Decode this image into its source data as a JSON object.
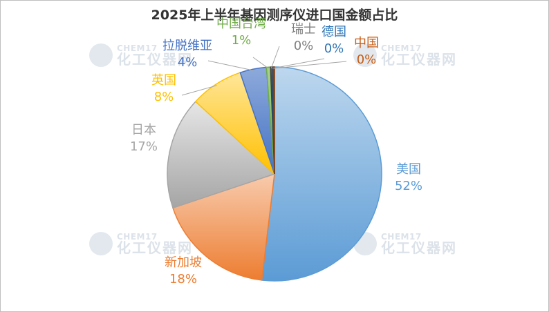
{
  "watermark": {
    "brand": "CHEM17",
    "name": "化工仪器网"
  },
  "chart_data": {
    "type": "pie",
    "title": "2025年上半年基因测序仪进口国金额占比",
    "slices": [
      {
        "label": "美国",
        "value": 52,
        "value_label": "52%",
        "color_light": "#bdd7ee",
        "color_dark": "#5b9bd5",
        "text_color": "#5b9bd5"
      },
      {
        "label": "新加坡",
        "value": 18,
        "value_label": "18%",
        "color_light": "#f8cbad",
        "color_dark": "#ed7d31",
        "text_color": "#ed7d31"
      },
      {
        "label": "日本",
        "value": 17,
        "value_label": "17%",
        "color_light": "#e7e6e6",
        "color_dark": "#a5a5a5",
        "text_color": "#a5a5a5"
      },
      {
        "label": "英国",
        "value": 8,
        "value_label": "8%",
        "color_light": "#ffe699",
        "color_dark": "#ffc000",
        "text_color": "#ffc000"
      },
      {
        "label": "拉脱维亚",
        "value": 4,
        "value_label": "4%",
        "color_light": "#8eaadb",
        "color_dark": "#4472c4",
        "text_color": "#4472c4"
      },
      {
        "label": "中国台湾",
        "value": 0.6,
        "value_label": "1%",
        "color_light": "#a9d18e",
        "color_dark": "#70ad47",
        "text_color": "#70ad47"
      },
      {
        "label": "瑞士",
        "value": 0.2,
        "value_label": "0%",
        "color_light": "#7f7f7f",
        "color_dark": "#404040",
        "text_color": "#7f7f7f"
      },
      {
        "label": "德国",
        "value": 0.2,
        "value_label": "0%",
        "color_light": "#2e75b6",
        "color_dark": "#1f4e79",
        "text_color": "#2e75b6"
      },
      {
        "label": "中国",
        "value": 0.2,
        "value_label": "0%",
        "color_light": "#c55a11",
        "color_dark": "#843c0c",
        "text_color": "#c55a11"
      }
    ]
  }
}
